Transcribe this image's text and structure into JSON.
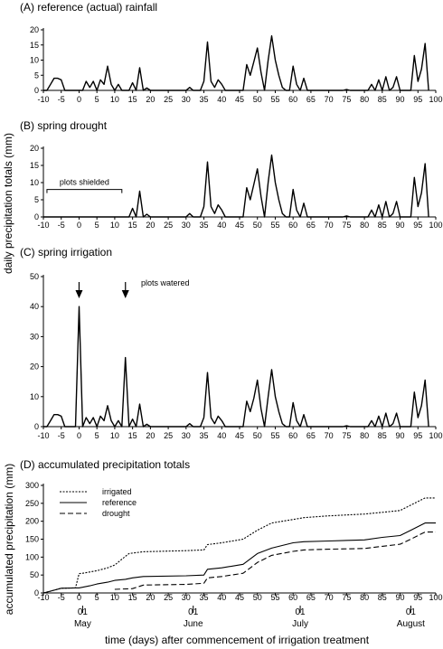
{
  "chart_data": [
    {
      "type": "line",
      "title": "(A) reference (actual) rainfall",
      "xlim": [
        -10,
        100
      ],
      "ylim": [
        0,
        20
      ],
      "xticks": [
        -10,
        -5,
        0,
        5,
        10,
        15,
        20,
        25,
        30,
        35,
        40,
        45,
        50,
        55,
        60,
        65,
        70,
        75,
        80,
        85,
        90,
        95,
        100
      ],
      "yticks": [
        0,
        5,
        10,
        15,
        20
      ],
      "series": [
        {
          "x": [
            -10,
            -9,
            -8,
            -7,
            -6,
            -5,
            -4,
            -3,
            -2,
            -1,
            0,
            1,
            2,
            3,
            4,
            5,
            6,
            7,
            8,
            9,
            10,
            11,
            12,
            13,
            14,
            15,
            16,
            17,
            18,
            19,
            20,
            21,
            29,
            30,
            31,
            32,
            33,
            34,
            35,
            36,
            37,
            38,
            39,
            40,
            41,
            45,
            46,
            47,
            48,
            49,
            50,
            51,
            52,
            53,
            54,
            55,
            56,
            57,
            58,
            59,
            60,
            61,
            62,
            63,
            64,
            65,
            66,
            74,
            75,
            76,
            78,
            79,
            80,
            81,
            82,
            83,
            84,
            85,
            86,
            87,
            88,
            89,
            90,
            91,
            92,
            93,
            94,
            95,
            96,
            97,
            98
          ],
          "y": [
            0,
            0,
            2,
            4,
            4,
            3.5,
            0,
            0,
            0,
            0,
            0,
            0,
            3,
            1,
            3,
            0,
            3.5,
            2,
            8,
            2,
            0,
            2,
            0,
            0,
            0,
            2.5,
            0,
            7.5,
            0,
            0.8,
            0,
            0,
            0,
            0,
            1,
            0,
            0,
            0,
            3,
            16,
            3,
            1,
            3.5,
            2,
            0,
            0,
            0,
            8.5,
            5,
            9.5,
            14,
            6,
            0,
            10,
            18,
            10,
            5,
            1,
            0,
            0,
            8,
            2,
            0,
            4,
            0,
            0,
            0,
            0,
            0.3,
            0,
            0,
            0,
            0,
            0,
            2,
            0,
            3.5,
            0,
            4.5,
            0,
            1,
            4.5,
            0,
            0,
            0,
            0,
            11.5,
            3,
            7,
            15.5,
            0
          ]
        }
      ]
    },
    {
      "type": "line",
      "title": "(B) spring drought",
      "xlim": [
        -10,
        100
      ],
      "ylim": [
        0,
        20
      ],
      "xticks": [
        -10,
        -5,
        0,
        5,
        10,
        15,
        20,
        25,
        30,
        35,
        40,
        45,
        50,
        55,
        60,
        65,
        70,
        75,
        80,
        85,
        90,
        95,
        100
      ],
      "yticks": [
        0,
        5,
        10,
        15,
        20
      ],
      "annotations": [
        {
          "text": "plots shielded",
          "x_range": [
            -9,
            12
          ]
        }
      ],
      "series": [
        {
          "x": [
            -10,
            -9,
            -8,
            -7,
            -6,
            -5,
            -4,
            -3,
            -2,
            -1,
            0,
            1,
            2,
            3,
            4,
            5,
            6,
            7,
            8,
            9,
            10,
            11,
            12,
            13,
            14,
            15,
            16,
            17,
            18,
            19,
            20,
            21,
            29,
            30,
            31,
            32,
            33,
            34,
            35,
            36,
            37,
            38,
            39,
            40,
            41,
            45,
            46,
            47,
            48,
            49,
            50,
            51,
            52,
            53,
            54,
            55,
            56,
            57,
            58,
            59,
            60,
            61,
            62,
            63,
            64,
            65,
            66,
            74,
            75,
            76,
            78,
            79,
            80,
            81,
            82,
            83,
            84,
            85,
            86,
            87,
            88,
            89,
            90,
            91,
            92,
            93,
            94,
            95,
            96,
            97,
            98
          ],
          "y": [
            0,
            0,
            0,
            0,
            0,
            0,
            0,
            0,
            0,
            0,
            0,
            0,
            0,
            0,
            0,
            0,
            0,
            0,
            0,
            0,
            0,
            0,
            0,
            0,
            0,
            2.5,
            0,
            7.5,
            0,
            0.8,
            0,
            0,
            0,
            0,
            1,
            0,
            0,
            0,
            3,
            16,
            3,
            1,
            3.5,
            2,
            0,
            0,
            0,
            8.5,
            5,
            9.5,
            14,
            6,
            0,
            10,
            18,
            10,
            5,
            1,
            0,
            0,
            8,
            2,
            0,
            4,
            0,
            0,
            0,
            0,
            0.3,
            0,
            0,
            0,
            0,
            0,
            2,
            0,
            3.5,
            0,
            4.5,
            0,
            1,
            4.5,
            0,
            0,
            0,
            0,
            11.5,
            3,
            7,
            15.5,
            0
          ]
        }
      ]
    },
    {
      "type": "line",
      "title": "(C) spring irrigation",
      "xlim": [
        -10,
        100
      ],
      "ylim": [
        0,
        50
      ],
      "xticks": [
        -10,
        -5,
        0,
        5,
        10,
        15,
        20,
        25,
        30,
        35,
        40,
        45,
        50,
        55,
        60,
        65,
        70,
        75,
        80,
        85,
        90,
        95,
        100
      ],
      "yticks": [
        0,
        10,
        20,
        30,
        40,
        50
      ],
      "annotations": [
        {
          "text": "plots watered",
          "arrows_at_x": [
            0,
            13
          ]
        }
      ],
      "series": [
        {
          "x": [
            -10,
            -9,
            -8,
            -7,
            -6,
            -5,
            -4,
            -3,
            -2,
            -1,
            0,
            1,
            2,
            3,
            4,
            5,
            6,
            7,
            8,
            9,
            10,
            11,
            12,
            13,
            14,
            15,
            16,
            17,
            18,
            19,
            20,
            21,
            29,
            30,
            31,
            32,
            33,
            34,
            35,
            36,
            37,
            38,
            39,
            40,
            41,
            45,
            46,
            47,
            48,
            49,
            50,
            51,
            52,
            53,
            54,
            55,
            56,
            57,
            58,
            59,
            60,
            61,
            62,
            63,
            64,
            65,
            66,
            74,
            75,
            76,
            78,
            79,
            80,
            81,
            82,
            83,
            84,
            85,
            86,
            87,
            88,
            89,
            90,
            91,
            92,
            93,
            94,
            95,
            96,
            97,
            98
          ],
          "y": [
            0,
            0,
            2,
            4,
            4,
            3.5,
            0,
            0,
            0,
            0,
            40,
            0,
            3,
            1,
            3,
            0,
            3.5,
            2,
            7,
            2,
            0,
            2,
            0,
            23,
            0,
            2.5,
            0,
            7.5,
            0,
            0.8,
            0,
            0,
            0,
            0,
            1,
            0,
            0,
            0,
            3,
            18,
            3,
            1,
            3.5,
            2,
            0,
            0,
            0,
            8.5,
            5,
            9.5,
            15.5,
            6,
            0,
            10,
            19,
            10,
            5,
            1,
            0,
            0,
            8,
            2,
            0,
            4,
            0,
            0,
            0,
            0,
            0.3,
            0,
            0,
            0,
            0,
            0,
            2,
            0,
            3.5,
            0,
            4.5,
            0,
            1,
            4.5,
            0,
            0,
            0,
            0,
            11.5,
            3,
            7,
            15.5,
            0
          ]
        }
      ]
    },
    {
      "type": "line",
      "title": "(D) accumulated precipitation totals",
      "xlim": [
        -10,
        100
      ],
      "ylim": [
        0,
        300
      ],
      "xticks": [
        -10,
        -5,
        0,
        5,
        10,
        15,
        20,
        25,
        30,
        35,
        40,
        45,
        50,
        55,
        60,
        65,
        70,
        75,
        80,
        85,
        90,
        95,
        100
      ],
      "yticks": [
        0,
        50,
        100,
        150,
        200,
        250,
        300
      ],
      "ylabel": "accumulated precipitation (mm)",
      "xlabel": "time (days) after commencement of irrigation treatment",
      "month_markers": [
        {
          "x": 1,
          "day": "01",
          "month": "May"
        },
        {
          "x": 32,
          "day": "01",
          "month": "June"
        },
        {
          "x": 62,
          "day": "01",
          "month": "July"
        },
        {
          "x": 93,
          "day": "01",
          "month": "August"
        }
      ],
      "legend_position": "top-left",
      "series": [
        {
          "name": "irrigated",
          "style": "dotted",
          "x": [
            -10,
            -8,
            -5,
            -1,
            0,
            1,
            5,
            8,
            10,
            13,
            14,
            18,
            30,
            35,
            36,
            40,
            46,
            50,
            54,
            60,
            63,
            70,
            80,
            85,
            90,
            93,
            96,
            97,
            100
          ],
          "y": [
            0,
            5,
            13,
            14,
            54,
            55,
            62,
            70,
            78,
            102,
            110,
            115,
            118,
            120,
            135,
            140,
            150,
            175,
            195,
            205,
            210,
            215,
            220,
            225,
            230,
            245,
            260,
            265,
            265
          ]
        },
        {
          "name": "reference",
          "style": "solid",
          "x": [
            -10,
            -8,
            -5,
            -1,
            0,
            3,
            5,
            8,
            10,
            13,
            15,
            18,
            30,
            35,
            36,
            40,
            46,
            50,
            54,
            60,
            63,
            70,
            80,
            85,
            90,
            93,
            96,
            97,
            100
          ],
          "y": [
            0,
            5,
            13,
            14,
            14,
            20,
            25,
            30,
            35,
            38,
            42,
            46,
            48,
            50,
            66,
            70,
            80,
            110,
            125,
            140,
            143,
            145,
            148,
            155,
            160,
            175,
            190,
            195,
            195
          ]
        },
        {
          "name": "drought",
          "style": "dashed",
          "x": [
            10,
            15,
            18,
            30,
            35,
            36,
            40,
            46,
            50,
            54,
            60,
            63,
            70,
            80,
            85,
            90,
            93,
            96,
            97,
            100
          ],
          "y": [
            10,
            12,
            22,
            24,
            27,
            42,
            46,
            55,
            85,
            105,
            116,
            120,
            122,
            124,
            130,
            136,
            150,
            165,
            170,
            170
          ]
        }
      ]
    }
  ],
  "shared_ylabel": "daily precipitation totals (mm)"
}
